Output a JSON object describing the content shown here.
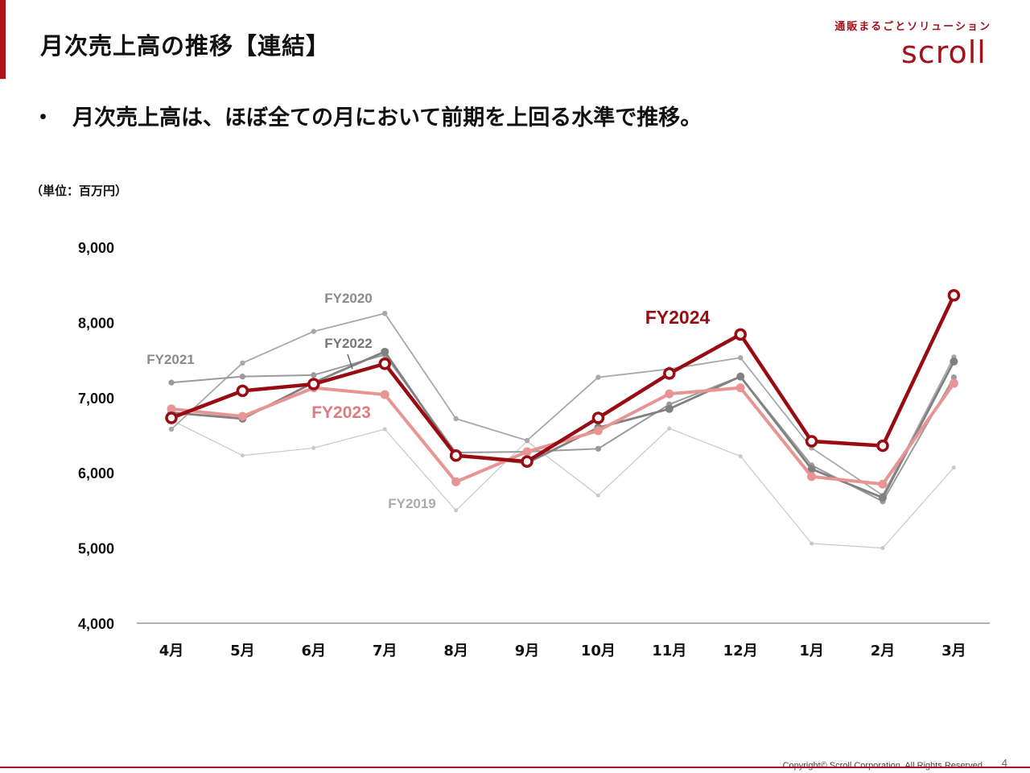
{
  "header": {
    "title": "月次売上高の推移【連結】",
    "logo_tagline": "通販まるごとソリューション",
    "logo_word": "scroll",
    "brand_color": "#b0101a"
  },
  "bullet": {
    "marker": "・",
    "text": "月次売上高は、ほぼ全ての月において前期を上回る水準で推移。"
  },
  "chart_data": {
    "type": "line",
    "unit_label": "（単位：百万円）",
    "categories": [
      "4月",
      "5月",
      "6月",
      "7月",
      "8月",
      "9月",
      "10月",
      "11月",
      "12月",
      "1月",
      "2月",
      "3月"
    ],
    "ylim": [
      4000,
      9000
    ],
    "yticks": [
      "4,000",
      "5,000",
      "6,000",
      "7,000",
      "8,000",
      "9,000"
    ],
    "ytick_values": [
      4000,
      5000,
      6000,
      7000,
      8000,
      9000
    ],
    "grid": false,
    "series": [
      {
        "name": "FY2019",
        "color": "#c8c8c8",
        "values": [
          6700,
          6230,
          6330,
          6580,
          5500,
          6420,
          5700,
          6590,
          6220,
          5060,
          5000,
          6070
        ]
      },
      {
        "name": "FY2020",
        "color": "#a8a8a8",
        "values": [
          6580,
          7460,
          7880,
          8120,
          6720,
          6430,
          7270,
          7380,
          7530,
          6330,
          5700,
          7540
        ]
      },
      {
        "name": "FY2021",
        "color": "#9a9a9a",
        "values": [
          7200,
          7280,
          7300,
          7570,
          6270,
          6280,
          6320,
          6910,
          7280,
          6100,
          5620,
          7270
        ]
      },
      {
        "name": "FY2022",
        "color": "#808080",
        "values": [
          6800,
          6720,
          7200,
          7610,
          6230,
          6130,
          6600,
          6850,
          7280,
          6050,
          5670,
          7480
        ]
      },
      {
        "name": "FY2023",
        "color": "#e89494",
        "values": [
          6850,
          6750,
          7130,
          7040,
          5880,
          6280,
          6560,
          7050,
          7130,
          5950,
          5850,
          7190
        ]
      },
      {
        "name": "FY2024",
        "color": "#990b12",
        "values": [
          6730,
          7090,
          7180,
          7450,
          6230,
          6150,
          6730,
          7320,
          7840,
          6420,
          6360,
          8360
        ]
      }
    ]
  },
  "footer": {
    "copyright": "Copyright© Scroll Corporation. All Rights Reserved.",
    "page_number": "4"
  }
}
